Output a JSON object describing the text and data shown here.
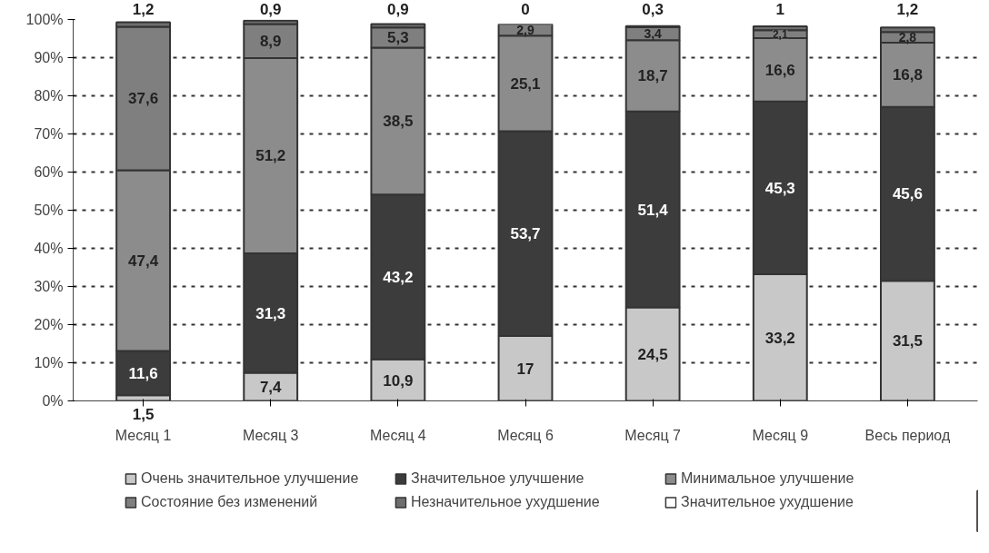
{
  "chart_data": {
    "type": "bar",
    "stacked": true,
    "categories": [
      "Месяц 1",
      "Месяц 3",
      "Месяц 4",
      "Месяц 6",
      "Месяц 7",
      "Месяц 9",
      "Весь период"
    ],
    "series": [
      {
        "name": "Очень значительное улучшение",
        "color": "#c8c8c8",
        "values": [
          1.5,
          7.4,
          10.9,
          17,
          24.5,
          33.2,
          31.5
        ],
        "value_labels": [
          "1,5",
          "7,4",
          "10,9",
          "17",
          "24,5",
          "33,2",
          "31,5"
        ]
      },
      {
        "name": "Значительное улучшение",
        "color": "#3c3c3c",
        "values": [
          11.6,
          31.3,
          43.2,
          53.7,
          51.4,
          45.3,
          45.6
        ],
        "value_labels": [
          "11,6",
          "31,3",
          "43,2",
          "53,7",
          "51,4",
          "45,3",
          "45,6"
        ]
      },
      {
        "name": "Минимальное улучшение",
        "color": "#8c8c8c",
        "values": [
          47.4,
          51.2,
          38.5,
          25.1,
          18.7,
          16.6,
          16.8
        ],
        "value_labels": [
          "47,4",
          "51,2",
          "38,5",
          "25,1",
          "18,7",
          "16,6",
          "16,8"
        ]
      },
      {
        "name": "Состояние без изменений",
        "color": "#7f7f7f",
        "values": [
          37.6,
          8.9,
          5.3,
          2.9,
          3.4,
          2.1,
          2.8
        ],
        "value_labels": [
          "37,6",
          "8,9",
          "5,3",
          "2,9",
          "3,4",
          "2,1",
          "2,8"
        ]
      },
      {
        "name": "Незначительное ухудшение",
        "color": "#6e6e6e",
        "values": [
          1.2,
          0.9,
          0.9,
          0,
          0.3,
          1,
          1.2
        ],
        "value_labels": [
          "1,2",
          "0,9",
          "0,9",
          "0",
          "0,3",
          "1",
          "1,2"
        ]
      },
      {
        "name": "Значительное ухудшение",
        "color": "#ffffff",
        "values": [
          null,
          null,
          null,
          null,
          null,
          null,
          null
        ]
      }
    ],
    "ylim": [
      0,
      100
    ],
    "yticks": [
      {
        "value": 0,
        "label": "0%"
      },
      {
        "value": 10,
        "label": "10%"
      },
      {
        "value": 20,
        "label": "20%"
      },
      {
        "value": 30,
        "label": "30%"
      },
      {
        "value": 40,
        "label": "40%"
      },
      {
        "value": 50,
        "label": "50%"
      },
      {
        "value": 60,
        "label": "60%"
      },
      {
        "value": 70,
        "label": "70%"
      },
      {
        "value": 80,
        "label": "80%"
      },
      {
        "value": 90,
        "label": "90%"
      },
      {
        "value": 100,
        "label": "100%"
      }
    ],
    "grid": "y",
    "legend": "bottom"
  }
}
